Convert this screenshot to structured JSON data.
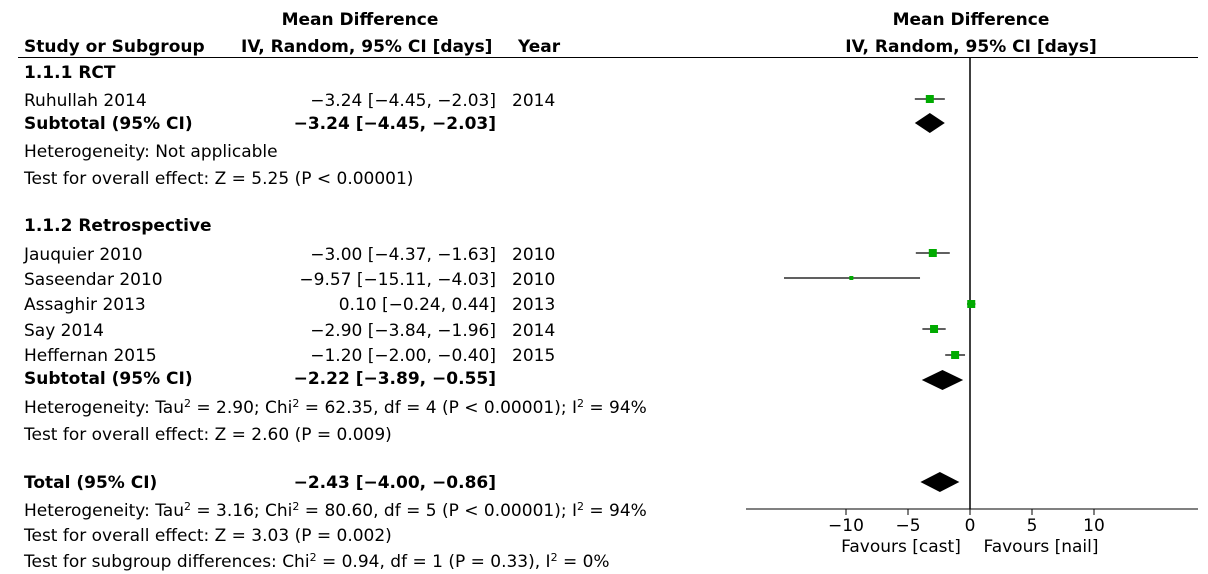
{
  "header": {
    "study_col": "Study or Subgroup",
    "md_title": "Mean Difference",
    "md_sub": "IV, Random, 95% CI [days]",
    "year_col": "Year",
    "plot_title": "Mean Difference",
    "plot_sub": "IV, Random, 95% CI [days]"
  },
  "groups": [
    {
      "title": "1.1.1 RCT",
      "studies": [
        {
          "name": "Ruhullah 2014",
          "ci_text": "−3.24 [−4.45, −2.03]",
          "year": "2014"
        }
      ],
      "subtotal": {
        "label": "Subtotal (95% CI)",
        "ci_text": "−3.24 [−4.45, −2.03]"
      },
      "heterogeneity": "Heterogeneity: Not applicable",
      "overall": "Test for overall effect: Z = 5.25 (P < 0.00001)"
    },
    {
      "title": "1.1.2 Retrospective",
      "studies": [
        {
          "name": "Jauquier 2010",
          "ci_text": "−3.00 [−4.37, −1.63]",
          "year": "2010"
        },
        {
          "name": "Saseendar 2010",
          "ci_text": "−9.57 [−15.11, −4.03]",
          "year": "2010"
        },
        {
          "name": "Assaghir 2013",
          "ci_text": "0.10 [−0.24, 0.44]",
          "year": "2013"
        },
        {
          "name": "Say 2014",
          "ci_text": "−2.90 [−3.84, −1.96]",
          "year": "2014"
        },
        {
          "name": "Heffernan 2015",
          "ci_text": "−1.20 [−2.00, −0.40]",
          "year": "2015"
        }
      ],
      "subtotal": {
        "label": "Subtotal (95% CI)",
        "ci_text": "−2.22 [−3.89, −0.55]"
      },
      "heterogeneity": {
        "pre": "Heterogeneity: Tau",
        "tau_sup": "2",
        "mid": " = 2.90; Chi",
        "chi_sup": "2",
        "post": " = 62.35, df = 4 (P < 0.00001); I",
        "i_sup": "2",
        "end": " = 94%"
      },
      "overall": "Test for overall effect: Z = 2.60 (P = 0.009)"
    }
  ],
  "total": {
    "label": "Total (95% CI)",
    "ci_text": "−2.43 [−4.00, −0.86]",
    "heterogeneity": {
      "pre": "Heterogeneity: Tau",
      "tau_sup": "2",
      "mid": " = 3.16; Chi",
      "chi_sup": "2",
      "post": " = 80.60, df = 5 (P < 0.00001); I",
      "i_sup": "2",
      "end": " = 94%"
    },
    "overall": "Test for overall effect: Z = 3.03 (P = 0.002)",
    "subgroup": {
      "pre": "Test for subgroup differences: Chi",
      "chi_sup": "2",
      "post": " = 0.94, df = 1 (P = 0.33), I",
      "i_sup": "2",
      "end": " = 0%"
    }
  },
  "axis": {
    "favours_left": "Favours [cast]",
    "favours_right": "Favours [nail]"
  },
  "colors": {
    "square": "#00aa00",
    "diamond": "#000000",
    "line": "#000000"
  },
  "chart_data": {
    "type": "forest",
    "xlim": [
      -15,
      15
    ],
    "xticks": [
      -10,
      -5,
      0,
      5,
      10
    ],
    "xtick_labels": [
      "−10",
      "−5",
      "0",
      "5",
      "10"
    ],
    "points": [
      {
        "kind": "study",
        "study": "Ruhullah 2014",
        "mean": -3.24,
        "lo": -4.45,
        "hi": -2.03,
        "weight": 2
      },
      {
        "kind": "diamond",
        "study": "Subtotal 1.1.1",
        "mean": -3.24,
        "lo": -4.45,
        "hi": -2.03
      },
      {
        "kind": "study",
        "study": "Jauquier 2010",
        "mean": -3.0,
        "lo": -4.37,
        "hi": -1.63,
        "weight": 2
      },
      {
        "kind": "study",
        "study": "Saseendar 2010",
        "mean": -9.57,
        "lo": -15.11,
        "hi": -4.03,
        "weight": 1
      },
      {
        "kind": "study",
        "study": "Assaghir 2013",
        "mean": 0.1,
        "lo": -0.24,
        "hi": 0.44,
        "weight": 2
      },
      {
        "kind": "study",
        "study": "Say 2014",
        "mean": -2.9,
        "lo": -3.84,
        "hi": -1.96,
        "weight": 2
      },
      {
        "kind": "study",
        "study": "Heffernan 2015",
        "mean": -1.2,
        "lo": -2.0,
        "hi": -0.4,
        "weight": 2
      },
      {
        "kind": "diamond",
        "study": "Subtotal 1.1.2",
        "mean": -2.22,
        "lo": -3.89,
        "hi": -0.55
      },
      {
        "kind": "diamond",
        "study": "Total",
        "mean": -2.43,
        "lo": -4.0,
        "hi": -0.86
      }
    ]
  }
}
